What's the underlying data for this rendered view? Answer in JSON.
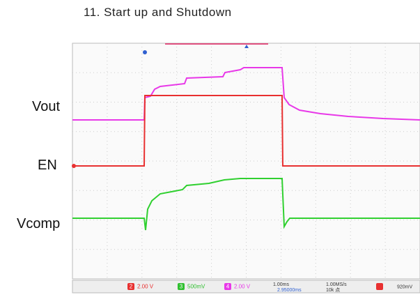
{
  "header": {
    "title": "11. Start up and Shutdown"
  },
  "labels": [
    "Vout",
    "EN",
    "Vcomp"
  ],
  "status_bar": {
    "channels": [
      {
        "badge": "2",
        "scale": "2.00 V"
      },
      {
        "badge": "3",
        "scale": "500mV"
      },
      {
        "badge": "4",
        "scale": "2.00 V"
      }
    ],
    "timebase": "1.00ms",
    "delay": "2.95000ms",
    "sample_rate": "1.00MS/s",
    "points": "10k 点",
    "trigger_level": "920mV"
  }
}
